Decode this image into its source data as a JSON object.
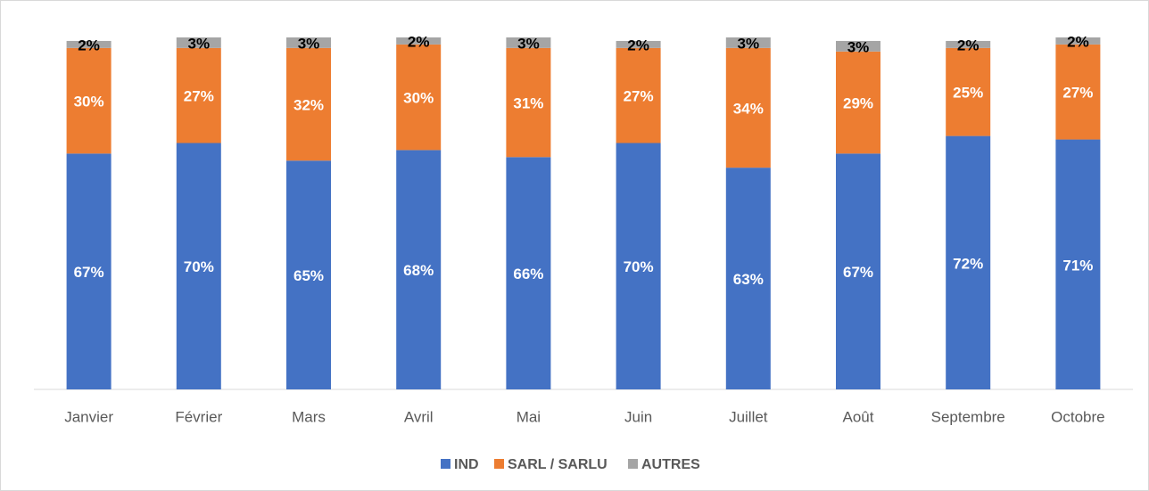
{
  "chart_data": {
    "type": "stacked_bar",
    "categories": [
      "Janvier",
      "Février",
      "Mars",
      "Avril",
      "Mai",
      "Juin",
      "Juillet",
      "Août",
      "Septembre",
      "Octobre"
    ],
    "series": [
      {
        "name": "IND",
        "color": "#4472c4",
        "label_color": "#ffffff",
        "values": [
          67,
          70,
          65,
          68,
          66,
          70,
          63,
          67,
          72,
          71
        ],
        "value_labels": [
          "67%",
          "70%",
          "65%",
          "68%",
          "66%",
          "70%",
          "63%",
          "67%",
          "72%",
          "71%"
        ]
      },
      {
        "name": "SARL / SARLU",
        "color": "#ed7d31",
        "label_color": "#ffffff",
        "values": [
          30,
          27,
          32,
          30,
          31,
          27,
          34,
          29,
          25,
          27
        ],
        "value_labels": [
          "30%",
          "27%",
          "32%",
          "30%",
          "31%",
          "27%",
          "34%",
          "29%",
          "25%",
          "27%"
        ]
      },
      {
        "name": "AUTRES",
        "color": "#a5a5a5",
        "label_color": "#000000",
        "values": [
          2,
          3,
          3,
          2,
          3,
          2,
          3,
          3,
          2,
          2
        ],
        "value_labels": [
          "2%",
          "3%",
          "3%",
          "2%",
          "3%",
          "2%",
          "3%",
          "3%",
          "2%",
          "2%"
        ]
      }
    ],
    "ylim": [
      0,
      100
    ],
    "legend": "bottom"
  }
}
